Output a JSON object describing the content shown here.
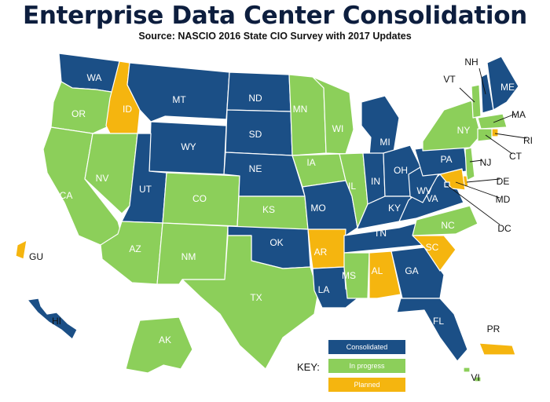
{
  "title": "Enterprise Data Center Consolidation",
  "subtitle": "Source: NASCIO 2016 State CIO Survey with 2017 Updates",
  "colors": {
    "consolidated": "#1b4f86",
    "in_progress": "#8ccf5a",
    "planned": "#f5b50f",
    "borders": "#ffffff"
  },
  "legend": {
    "key_label": "KEY:",
    "items": [
      {
        "label": "Consolidated",
        "status": "consolidated"
      },
      {
        "label": "In progress",
        "status": "in_progress"
      },
      {
        "label": "Planned",
        "status": "planned"
      }
    ]
  },
  "states": [
    {
      "abbr": "WA",
      "status": "consolidated"
    },
    {
      "abbr": "OR",
      "status": "in_progress"
    },
    {
      "abbr": "CA",
      "status": "in_progress"
    },
    {
      "abbr": "ID",
      "status": "planned"
    },
    {
      "abbr": "NV",
      "status": "in_progress"
    },
    {
      "abbr": "MT",
      "status": "consolidated"
    },
    {
      "abbr": "WY",
      "status": "consolidated"
    },
    {
      "abbr": "UT",
      "status": "consolidated"
    },
    {
      "abbr": "CO",
      "status": "in_progress"
    },
    {
      "abbr": "AZ",
      "status": "in_progress"
    },
    {
      "abbr": "NM",
      "status": "in_progress"
    },
    {
      "abbr": "ND",
      "status": "consolidated"
    },
    {
      "abbr": "SD",
      "status": "consolidated"
    },
    {
      "abbr": "NE",
      "status": "consolidated"
    },
    {
      "abbr": "KS",
      "status": "in_progress"
    },
    {
      "abbr": "OK",
      "status": "consolidated"
    },
    {
      "abbr": "TX",
      "status": "in_progress"
    },
    {
      "abbr": "MN",
      "status": "in_progress"
    },
    {
      "abbr": "IA",
      "status": "in_progress"
    },
    {
      "abbr": "MO",
      "status": "consolidated"
    },
    {
      "abbr": "AR",
      "status": "planned"
    },
    {
      "abbr": "LA",
      "status": "consolidated"
    },
    {
      "abbr": "WI",
      "status": "in_progress"
    },
    {
      "abbr": "IL",
      "status": "in_progress"
    },
    {
      "abbr": "MI",
      "status": "consolidated"
    },
    {
      "abbr": "IN",
      "status": "consolidated"
    },
    {
      "abbr": "OH",
      "status": "consolidated"
    },
    {
      "abbr": "KY",
      "status": "consolidated"
    },
    {
      "abbr": "TN",
      "status": "consolidated"
    },
    {
      "abbr": "MS",
      "status": "in_progress"
    },
    {
      "abbr": "AL",
      "status": "planned"
    },
    {
      "abbr": "GA",
      "status": "consolidated"
    },
    {
      "abbr": "FL",
      "status": "consolidated"
    },
    {
      "abbr": "SC",
      "status": "planned"
    },
    {
      "abbr": "NC",
      "status": "in_progress"
    },
    {
      "abbr": "VA",
      "status": "consolidated"
    },
    {
      "abbr": "WV",
      "status": "consolidated"
    },
    {
      "abbr": "PA",
      "status": "consolidated"
    },
    {
      "abbr": "NY",
      "status": "in_progress"
    },
    {
      "abbr": "VT",
      "status": "in_progress"
    },
    {
      "abbr": "NH",
      "status": "consolidated"
    },
    {
      "abbr": "ME",
      "status": "consolidated"
    },
    {
      "abbr": "MA",
      "status": "in_progress"
    },
    {
      "abbr": "RI",
      "status": "planned"
    },
    {
      "abbr": "CT",
      "status": "in_progress"
    },
    {
      "abbr": "NJ",
      "status": "in_progress"
    },
    {
      "abbr": "DE",
      "status": "planned"
    },
    {
      "abbr": "MD",
      "status": "planned"
    },
    {
      "abbr": "DC",
      "status": "consolidated"
    },
    {
      "abbr": "AK",
      "status": "in_progress"
    },
    {
      "abbr": "HI",
      "status": "consolidated"
    },
    {
      "abbr": "GU",
      "status": "planned"
    },
    {
      "abbr": "PR",
      "status": "planned"
    },
    {
      "abbr": "VI",
      "status": "in_progress"
    }
  ]
}
